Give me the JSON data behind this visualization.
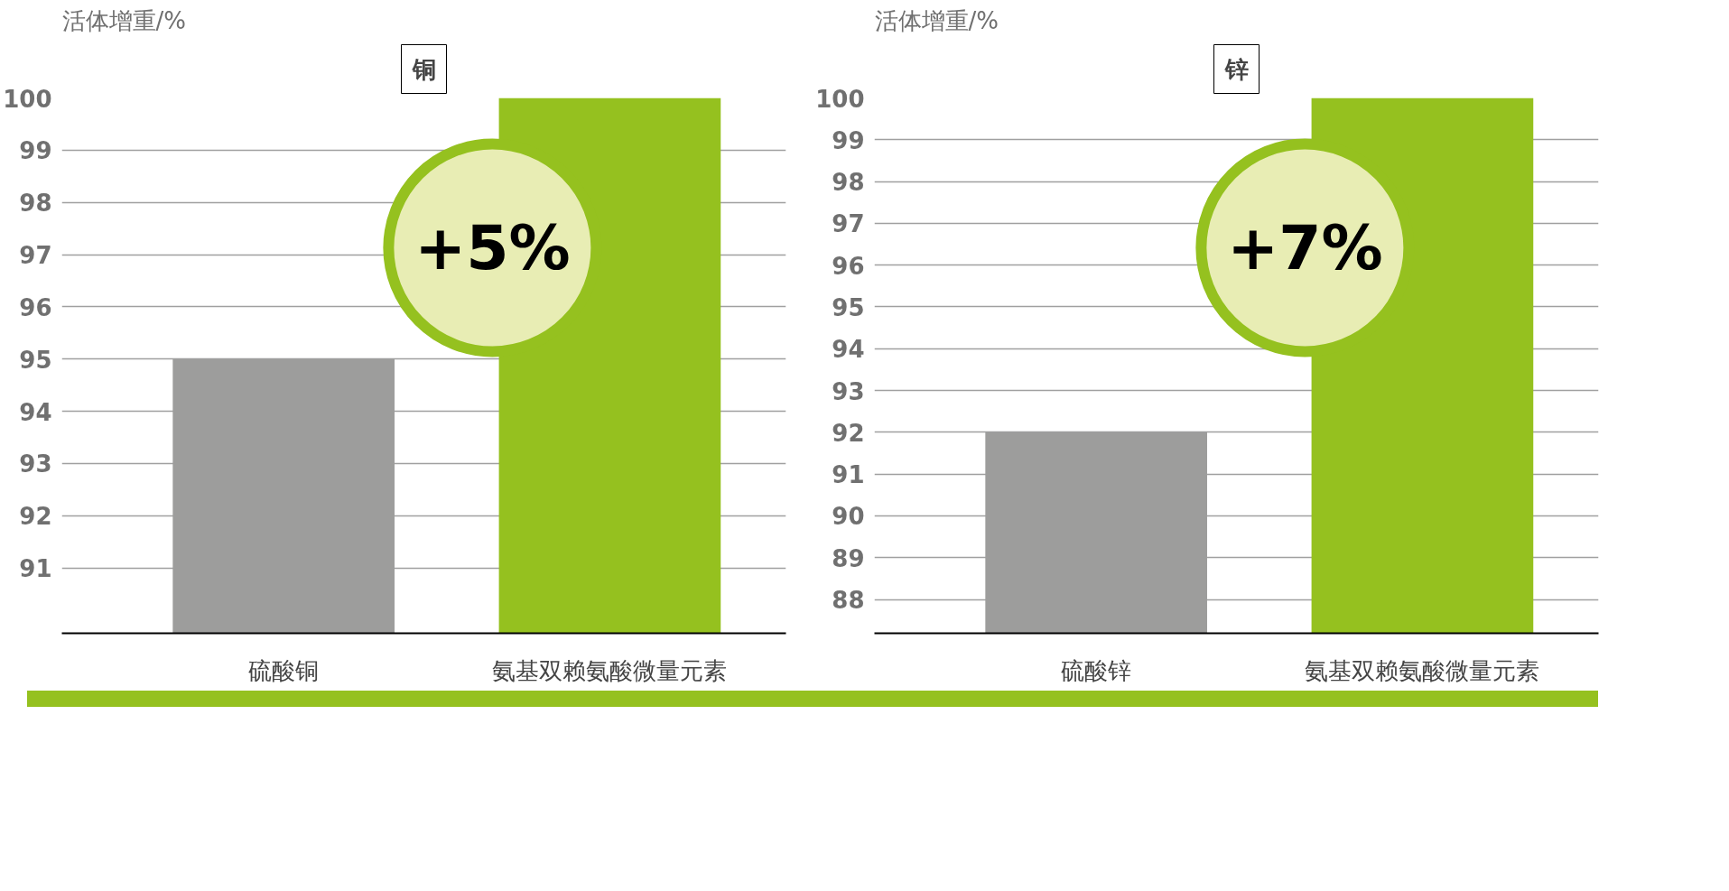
{
  "chart_data": [
    {
      "type": "bar",
      "title": "铜",
      "ylabel": "活体增重/%",
      "categories": [
        "硫酸铜",
        "氨基双赖氨酸微量元素"
      ],
      "values": [
        95,
        100
      ],
      "colors": [
        "#9d9d9c",
        "#95c11f"
      ],
      "ylim": [
        89.75,
        100
      ],
      "yticks": [
        91,
        92,
        93,
        94,
        95,
        96,
        97,
        98,
        99,
        100
      ],
      "grid": "y",
      "annotations": [
        "+5%"
      ]
    },
    {
      "type": "bar",
      "title": "锌",
      "ylabel": "活体增重/%",
      "categories": [
        "硫酸锌",
        "氨基双赖氨酸微量元素"
      ],
      "values": [
        92,
        100
      ],
      "colors": [
        "#9d9d9c",
        "#95c11f"
      ],
      "ylim": [
        87.19,
        100
      ],
      "yticks": [
        88,
        89,
        90,
        91,
        92,
        93,
        94,
        95,
        96,
        97,
        98,
        99,
        100
      ],
      "grid": "y",
      "annotations": [
        "+7%"
      ]
    }
  ]
}
